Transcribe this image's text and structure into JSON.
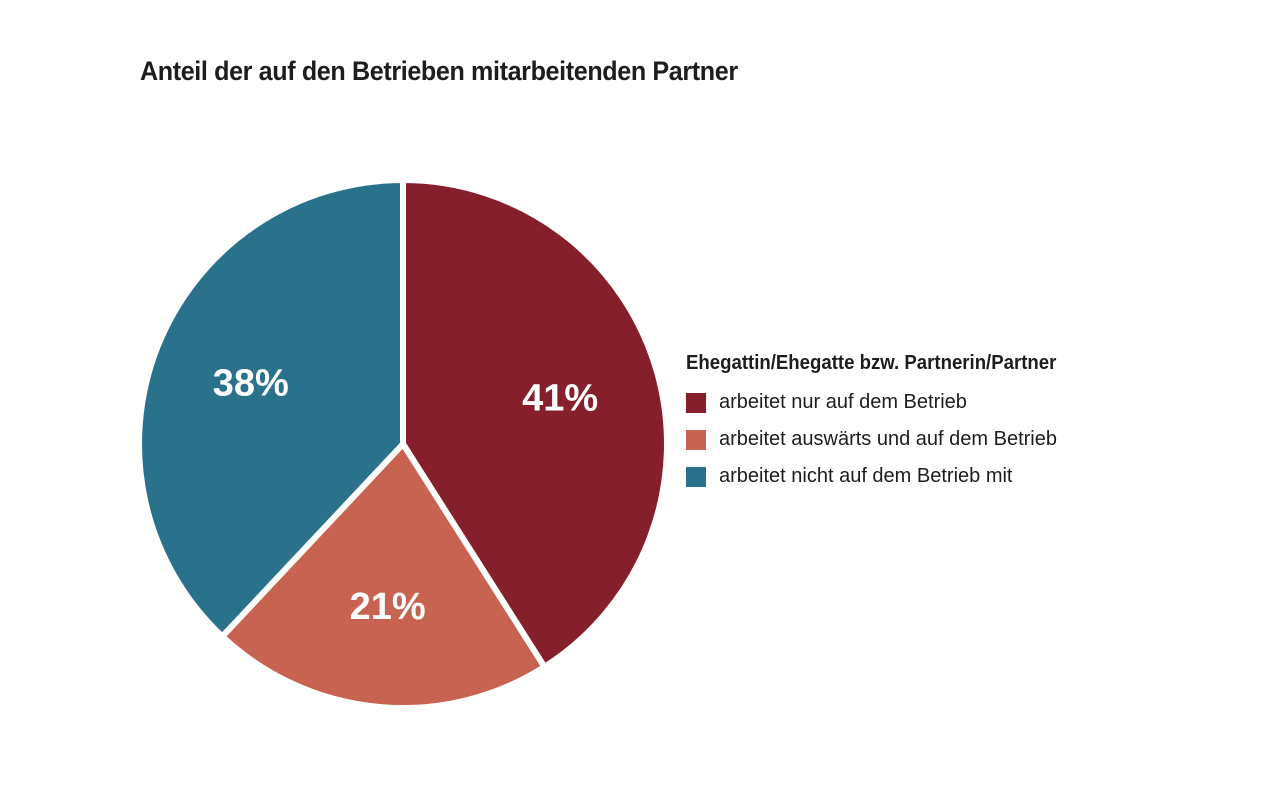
{
  "chart_data": {
    "type": "pie",
    "title": "Anteil der auf den Betrieben mitarbeitenden Partner",
    "legend_title": "Ehegattin/Ehegatte bzw. Partnerin/Partner",
    "legend_position": "right",
    "slices": [
      {
        "label": "arbeitet nur auf dem Betrieb",
        "value": 41,
        "display": "41%",
        "color": "#861f2c"
      },
      {
        "label": "arbeitet auswärts und auf dem Betrieb",
        "value": 21,
        "display": "21%",
        "color": "#c86351"
      },
      {
        "label": "arbeitet nicht auf dem Betrieb mit",
        "value": 38,
        "display": "38%",
        "color": "#2a728b"
      }
    ]
  }
}
